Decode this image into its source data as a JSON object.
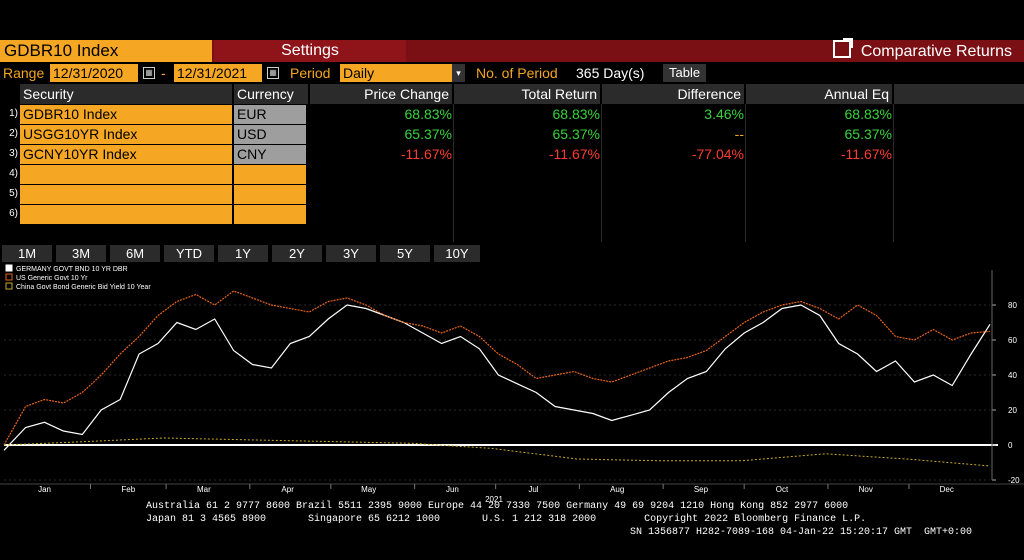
{
  "header": {
    "ticker": "GDBR10   Index",
    "settings_label": "Settings",
    "title": "Comparative Returns",
    "title_icon": "external-link-icon"
  },
  "controls": {
    "range_label": "Range",
    "start_date": "12/31/2020",
    "dash": "-",
    "end_date": "12/31/2021",
    "period_label": "Period",
    "period_value": "Daily",
    "num_period_label": "No. of Period",
    "num_period_value": "365 Day(s)",
    "table_button": "Table"
  },
  "table": {
    "headers": [
      "Security",
      "Currency",
      "Price Change",
      "Total Return",
      "Difference",
      "Annual Eq"
    ],
    "rows": [
      {
        "num": "1)",
        "security": "GDBR10   Index",
        "currency": "EUR",
        "price_change": "68.83%",
        "total_return": "68.83%",
        "difference": "3.46%",
        "annual_eq": "68.83%"
      },
      {
        "num": "2)",
        "security": "USGG10YR Index",
        "currency": "USD",
        "price_change": "65.37%",
        "total_return": "65.37%",
        "difference": "--",
        "annual_eq": "65.37%"
      },
      {
        "num": "3)",
        "security": "GCNY10YR Index",
        "currency": "CNY",
        "price_change": "-11.67%",
        "total_return": "-11.67%",
        "difference": "-77.04%",
        "annual_eq": "-11.67%"
      },
      {
        "num": "4)",
        "security": "",
        "currency": "",
        "price_change": "",
        "total_return": "",
        "difference": "",
        "annual_eq": ""
      },
      {
        "num": "5)",
        "security": "",
        "currency": "",
        "price_change": "",
        "total_return": "",
        "difference": "",
        "annual_eq": ""
      },
      {
        "num": "6)",
        "security": "",
        "currency": "",
        "price_change": "",
        "total_return": "",
        "difference": "",
        "annual_eq": ""
      }
    ]
  },
  "period_tabs": [
    "1M",
    "3M",
    "6M",
    "YTD",
    "1Y",
    "2Y",
    "3Y",
    "5Y",
    "10Y"
  ],
  "colors": {
    "accent_orange": "#f5a623",
    "header_red": "#7a0f14",
    "positive": "#36d33a",
    "negative": "#ff3b30",
    "series_germany": "#ffffff",
    "series_us": "#e8641a",
    "series_china": "#c8a92a"
  },
  "chart_data": {
    "type": "line",
    "xlabel": "2021",
    "x_tick_labels": [
      "Jan",
      "Feb",
      "Mar",
      "Apr",
      "May",
      "Jun",
      "Jul",
      "Aug",
      "Sep",
      "Oct",
      "Nov",
      "Dec"
    ],
    "ylim": [
      -20,
      100
    ],
    "y_ticks": [
      -20,
      0,
      20,
      40,
      60,
      80
    ],
    "legend_position": "top-left",
    "series": [
      {
        "name": "GERMANY GOVT BND 10 YR DBR",
        "x": [
          "2020-12-31",
          "2021-01-08",
          "2021-01-15",
          "2021-01-22",
          "2021-01-29",
          "2021-02-05",
          "2021-02-12",
          "2021-02-19",
          "2021-02-26",
          "2021-03-05",
          "2021-03-12",
          "2021-03-19",
          "2021-03-26",
          "2021-04-02",
          "2021-04-09",
          "2021-04-16",
          "2021-04-23",
          "2021-04-30",
          "2021-05-07",
          "2021-05-14",
          "2021-05-21",
          "2021-05-28",
          "2021-06-04",
          "2021-06-11",
          "2021-06-18",
          "2021-06-25",
          "2021-07-02",
          "2021-07-09",
          "2021-07-16",
          "2021-07-23",
          "2021-07-30",
          "2021-08-06",
          "2021-08-13",
          "2021-08-20",
          "2021-08-27",
          "2021-09-03",
          "2021-09-10",
          "2021-09-17",
          "2021-09-24",
          "2021-10-01",
          "2021-10-08",
          "2021-10-15",
          "2021-10-22",
          "2021-10-29",
          "2021-11-05",
          "2021-11-12",
          "2021-11-19",
          "2021-11-26",
          "2021-12-03",
          "2021-12-10",
          "2021-12-17",
          "2021-12-24",
          "2021-12-31"
        ],
        "values": [
          -3,
          10,
          13,
          8,
          6,
          20,
          26,
          52,
          58,
          70,
          66,
          72,
          54,
          46,
          44,
          58,
          62,
          72,
          80,
          78,
          74,
          70,
          64,
          58,
          62,
          55,
          40,
          35,
          30,
          22,
          20,
          18,
          14,
          17,
          20,
          30,
          38,
          42,
          55,
          64,
          70,
          78,
          80,
          74,
          58,
          52,
          42,
          48,
          36,
          40,
          34,
          52,
          69
        ]
      },
      {
        "name": "US Generic Govt 10 Yr",
        "x": [
          "2020-12-31",
          "2021-01-08",
          "2021-01-15",
          "2021-01-22",
          "2021-01-29",
          "2021-02-05",
          "2021-02-12",
          "2021-02-19",
          "2021-02-26",
          "2021-03-05",
          "2021-03-12",
          "2021-03-19",
          "2021-03-26",
          "2021-04-02",
          "2021-04-09",
          "2021-04-16",
          "2021-04-23",
          "2021-04-30",
          "2021-05-07",
          "2021-05-14",
          "2021-05-21",
          "2021-05-28",
          "2021-06-04",
          "2021-06-11",
          "2021-06-18",
          "2021-06-25",
          "2021-07-02",
          "2021-07-09",
          "2021-07-16",
          "2021-07-23",
          "2021-07-30",
          "2021-08-06",
          "2021-08-13",
          "2021-08-20",
          "2021-08-27",
          "2021-09-03",
          "2021-09-10",
          "2021-09-17",
          "2021-09-24",
          "2021-10-01",
          "2021-10-08",
          "2021-10-15",
          "2021-10-22",
          "2021-10-29",
          "2021-11-05",
          "2021-11-12",
          "2021-11-19",
          "2021-11-26",
          "2021-12-03",
          "2021-12-10",
          "2021-12-17",
          "2021-12-24",
          "2021-12-31"
        ],
        "values": [
          0,
          22,
          26,
          24,
          30,
          40,
          52,
          62,
          74,
          82,
          86,
          80,
          88,
          84,
          80,
          78,
          76,
          82,
          84,
          80,
          74,
          70,
          68,
          64,
          68,
          62,
          52,
          46,
          38,
          40,
          42,
          38,
          36,
          40,
          44,
          48,
          50,
          54,
          62,
          70,
          76,
          80,
          82,
          78,
          72,
          80,
          74,
          62,
          60,
          66,
          60,
          64,
          65
        ]
      },
      {
        "name": "China Govt Bond Generic Bid Yield 10 Year",
        "x": [
          "2020-12-31",
          "2021-01-31",
          "2021-02-28",
          "2021-03-31",
          "2021-04-30",
          "2021-05-31",
          "2021-06-30",
          "2021-07-31",
          "2021-08-31",
          "2021-09-30",
          "2021-10-31",
          "2021-11-30",
          "2021-12-31"
        ],
        "values": [
          0,
          2,
          4,
          3,
          2,
          1,
          -2,
          -8,
          -9,
          -9,
          -5,
          -8,
          -12
        ]
      }
    ]
  },
  "footer": {
    "line1": "Australia 61 2 9777 8600 Brazil 5511 2395 9000 Europe 44 20 7330 7500 Germany 49 69 9204 1210 Hong Kong 852 2977 6000",
    "line2": "Japan 81 3 4565 8900       Singapore 65 6212 1000       U.S. 1 212 318 2000        Copyright 2022 Bloomberg Finance L.P.",
    "line3": "SN 1356877 H282-7089-168 04-Jan-22 15:20:17 GMT  GMT+0:00"
  }
}
